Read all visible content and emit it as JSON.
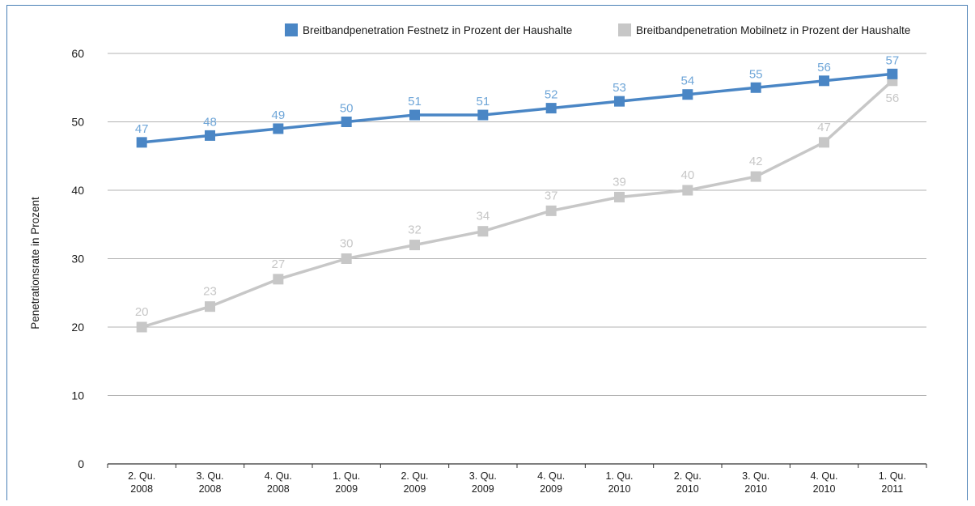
{
  "chart_data": {
    "type": "line",
    "ylabel": "Penetrationsrate in Prozent",
    "ylim": [
      0,
      60
    ],
    "yticks": [
      0,
      10,
      20,
      30,
      40,
      50,
      60
    ],
    "grid": true,
    "legend_position": "top-right",
    "categories": [
      [
        "2. Qu.",
        "2008"
      ],
      [
        "3. Qu.",
        "2008"
      ],
      [
        "4. Qu.",
        "2008"
      ],
      [
        "1. Qu.",
        "2009"
      ],
      [
        "2. Qu.",
        "2009"
      ],
      [
        "3. Qu.",
        "2009"
      ],
      [
        "4. Qu.",
        "2009"
      ],
      [
        "1. Qu.",
        "2010"
      ],
      [
        "2. Qu.",
        "2010"
      ],
      [
        "3. Qu.",
        "2010"
      ],
      [
        "4. Qu.",
        "2010"
      ],
      [
        "1. Qu.",
        "2011"
      ]
    ],
    "series": [
      {
        "name": "Breitbandpenetration Festnetz in Prozent der Haushalte",
        "color": "#4a86c5",
        "label_color": "#6fa6d8",
        "values": [
          47,
          48,
          49,
          50,
          51,
          51,
          52,
          53,
          54,
          55,
          56,
          57
        ]
      },
      {
        "name": "Breitbandpenetration Mobilnetz in Prozent der Haushalte",
        "color": "#c7c7c7",
        "label_color": "#c7c7c7",
        "values": [
          20,
          23,
          27,
          30,
          32,
          34,
          37,
          39,
          40,
          42,
          47,
          56
        ]
      }
    ]
  }
}
